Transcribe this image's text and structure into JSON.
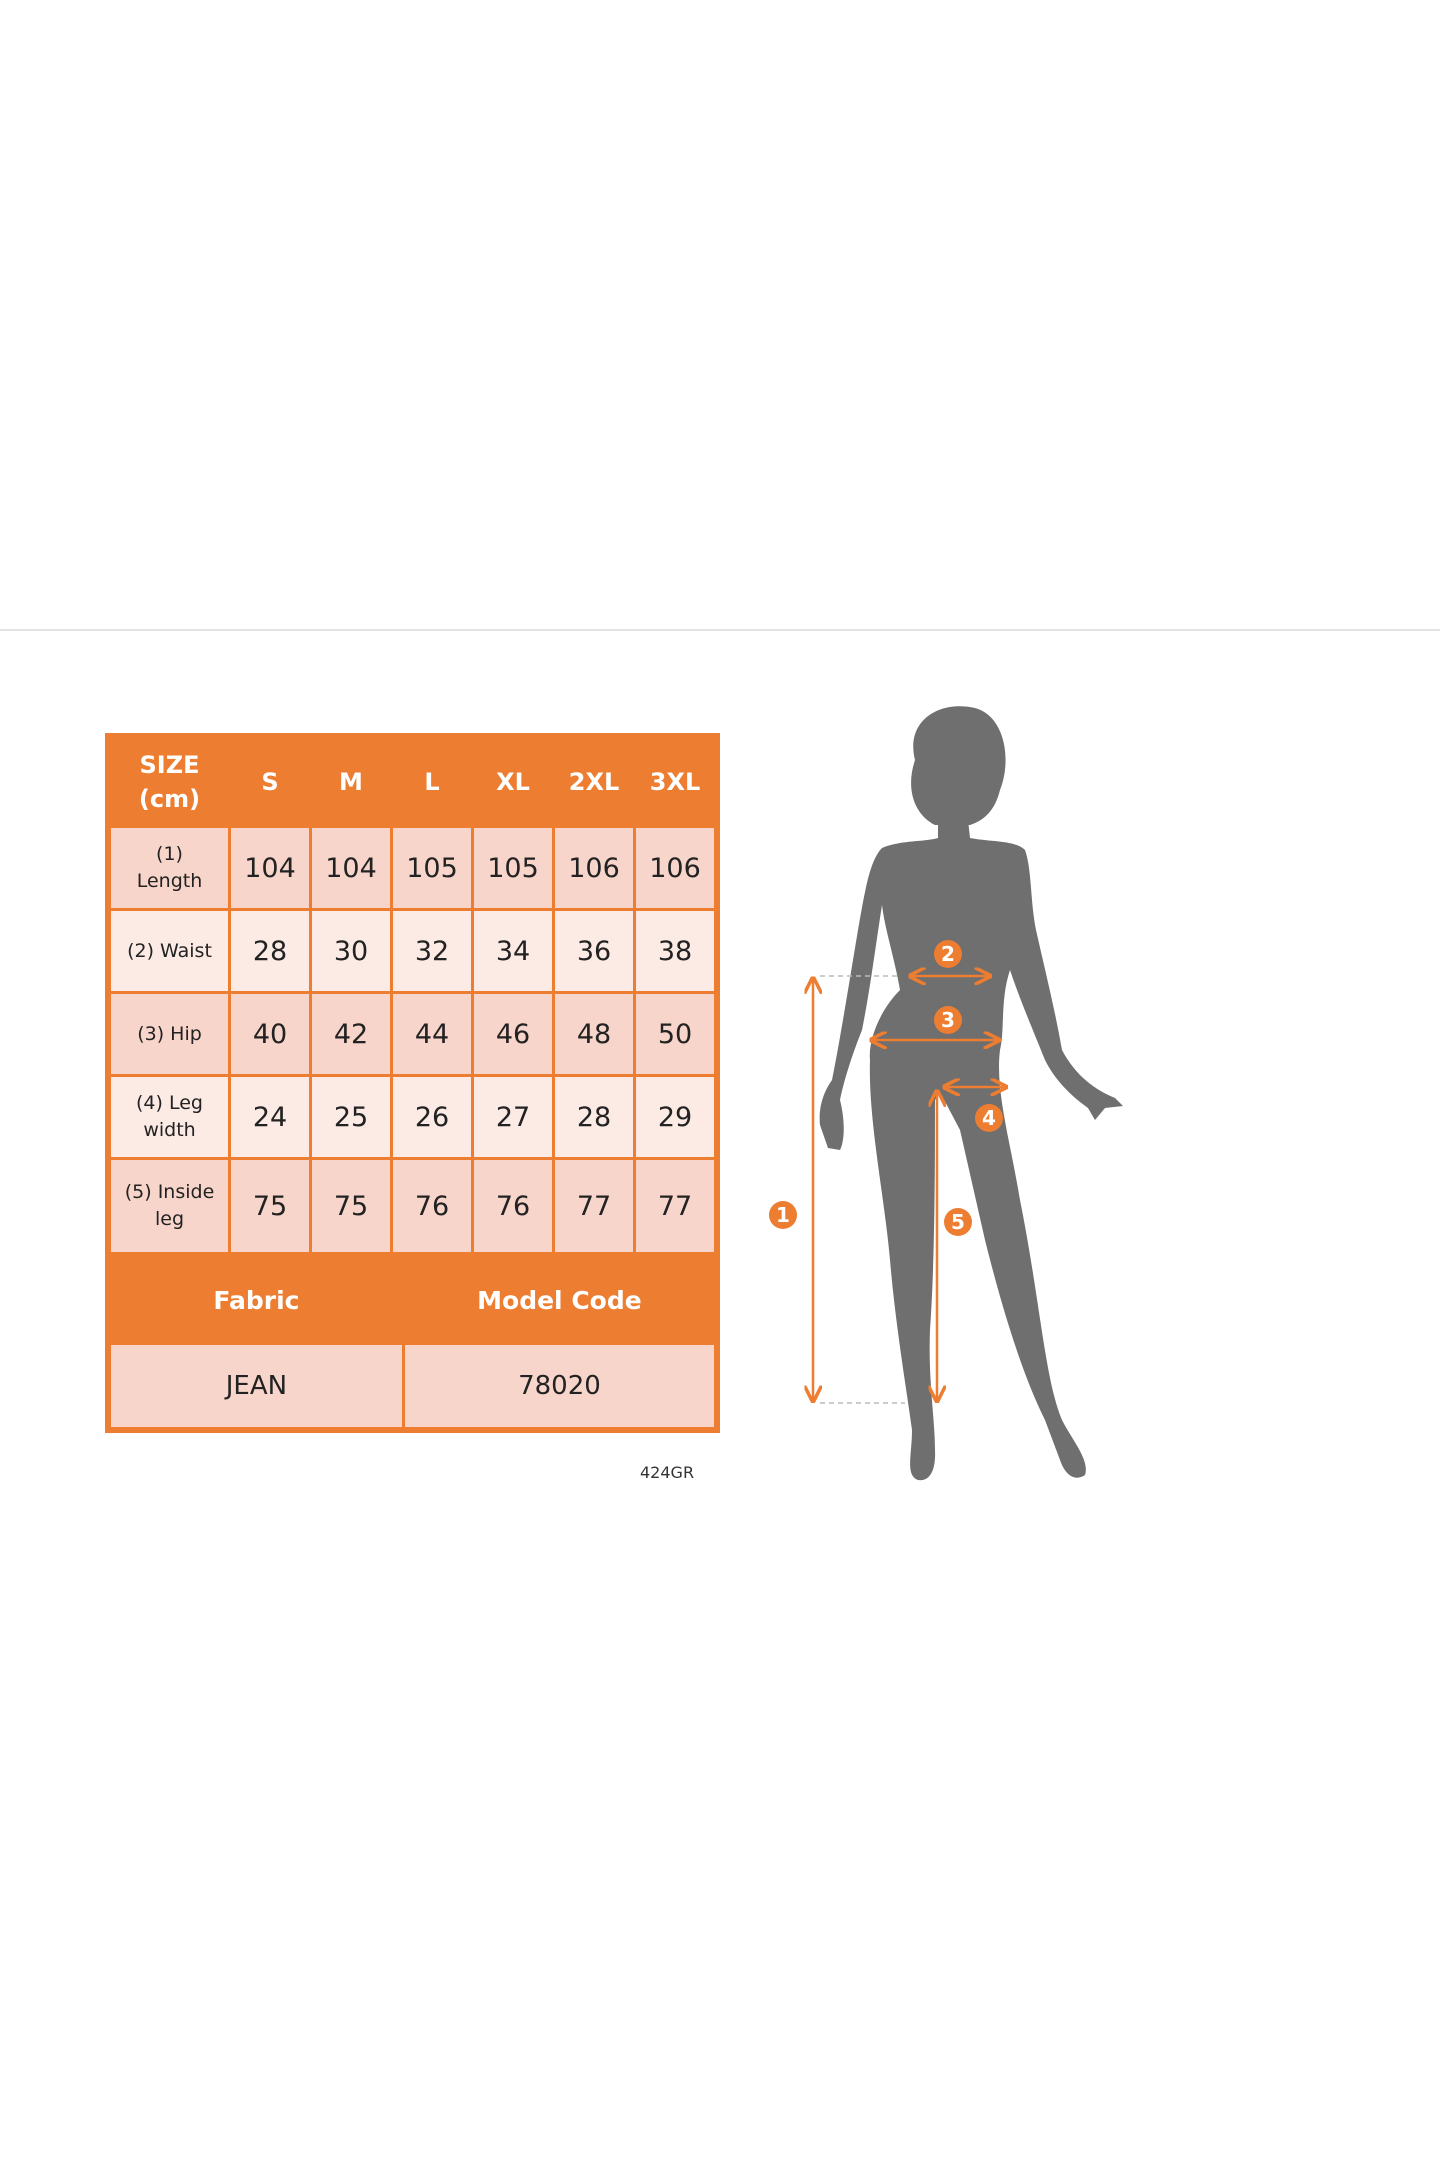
{
  "colors": {
    "accent": "#ED7D31",
    "cell_dark": "#F8D5CA",
    "cell_light": "#FCEAE4",
    "silhouette": "#6f6f6f"
  },
  "size_chart": {
    "header": {
      "label_line1": "SIZE",
      "label_line2": "(cm)",
      "sizes": [
        "S",
        "M",
        "L",
        "XL",
        "2XL",
        "3XL"
      ]
    },
    "rows": [
      {
        "label_line1": "(1)",
        "label_line2": "Length",
        "values": [
          "104",
          "104",
          "105",
          "105",
          "106",
          "106"
        ]
      },
      {
        "label_line1": "(2) Waist",
        "label_line2": "",
        "values": [
          "28",
          "30",
          "32",
          "34",
          "36",
          "38"
        ]
      },
      {
        "label_line1": "(3) Hip",
        "label_line2": "",
        "values": [
          "40",
          "42",
          "44",
          "46",
          "48",
          "50"
        ]
      },
      {
        "label_line1": "(4) Leg",
        "label_line2": "width",
        "values": [
          "24",
          "25",
          "26",
          "27",
          "28",
          "29"
        ]
      },
      {
        "label_line1": "(5) Inside",
        "label_line2": "leg",
        "values": [
          "75",
          "75",
          "76",
          "76",
          "77",
          "77"
        ]
      }
    ],
    "footer": {
      "fabric_label": "Fabric",
      "model_code_label": "Model Code",
      "fabric_value": "JEAN",
      "model_code_value": "78020"
    }
  },
  "image_code": "424GR",
  "figure": {
    "markers": [
      "1",
      "2",
      "3",
      "4",
      "5"
    ]
  }
}
